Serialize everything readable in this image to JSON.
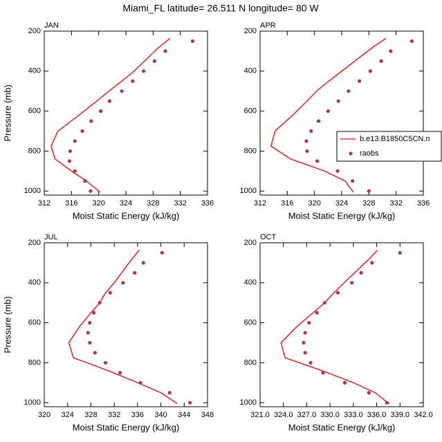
{
  "page_title": "Miami_FL  latitude= 26.511 N longitude= 80 W",
  "chart_data": [
    {
      "type": "line",
      "title": "JAN",
      "x_label": "Moist Static Energy (kJ/kg)",
      "y_label": "Pressure (mb)",
      "xlim": [
        312,
        336
      ],
      "xticks": [
        312,
        316,
        320,
        324,
        328,
        332,
        336
      ],
      "ylim": [
        1020,
        200
      ],
      "yticks": [
        200,
        400,
        600,
        800,
        1000
      ],
      "series": [
        {
          "color": "#ff0000",
          "x": [
            330.5,
            328.8,
            325.2,
            323.4,
            321.5,
            319.7,
            317.1,
            314.0,
            313.0,
            313.6,
            316.0,
            318.2,
            320.2
          ],
          "y": [
            236,
            282,
            400,
            450,
            500,
            550,
            620,
            700,
            775,
            840,
            900,
            950,
            1005
          ]
        },
        {
          "color": "#b03060",
          "marker": "dot",
          "x": [
            333.8,
            329.8,
            328.2,
            326.6,
            325.0,
            323.4,
            321.6,
            320.3,
            318.9,
            317.6,
            316.5,
            315.8,
            315.7,
            316.5,
            318.0,
            318.8
          ],
          "y": [
            250,
            300,
            350,
            400,
            450,
            500,
            550,
            600,
            650,
            700,
            750,
            800,
            850,
            900,
            950,
            1000
          ]
        }
      ]
    },
    {
      "type": "line",
      "title": "APR",
      "x_label": "Moist Static Energy (kJ/kg)",
      "xlim": [
        312,
        336
      ],
      "xticks": [
        312,
        316,
        320,
        324,
        328,
        332,
        336
      ],
      "ylim": [
        1020,
        200
      ],
      "yticks": [
        200,
        400,
        600,
        800,
        1000
      ],
      "legend": "right",
      "series": [
        {
          "name": "b.e13.B1850C5CN.n",
          "color": "#ff0000",
          "x": [
            330.5,
            328.5,
            324.0,
            322.1,
            320.3,
            318.9,
            316.8,
            314.2,
            313.6,
            316.5,
            321.5,
            324.5,
            325.7
          ],
          "y": [
            236,
            282,
            400,
            450,
            500,
            550,
            620,
            700,
            775,
            840,
            900,
            950,
            1005
          ]
        },
        {
          "name": "raobs",
          "color": "#b03060",
          "marker": "dot",
          "x": [
            334.3,
            331.2,
            329.8,
            328.2,
            326.6,
            325.0,
            323.5,
            322.0,
            320.6,
            319.5,
            318.8,
            318.9,
            320.4,
            323.4,
            325.6,
            328.0
          ],
          "y": [
            250,
            300,
            350,
            400,
            450,
            500,
            550,
            600,
            650,
            700,
            750,
            800,
            850,
            900,
            950,
            1000
          ]
        }
      ]
    },
    {
      "type": "line",
      "title": "JUL",
      "x_label": "Moist Static Energy (kJ/kg)",
      "y_label": "Pressure (mb)",
      "xlim": [
        320,
        348
      ],
      "xticks": [
        320,
        324,
        328,
        332,
        336,
        340,
        344,
        348
      ],
      "ylim": [
        1020,
        200
      ],
      "yticks": [
        200,
        400,
        600,
        800,
        1000
      ],
      "series": [
        {
          "color": "#ff0000",
          "x": [
            336.3,
            335.0,
            332.0,
            330.5,
            329.5,
            328.0,
            326.0,
            324.2,
            325.0,
            331.0,
            336.0,
            340.0,
            342.8
          ],
          "y": [
            236,
            282,
            400,
            450,
            500,
            550,
            620,
            700,
            775,
            840,
            900,
            950,
            1005
          ]
        },
        {
          "color": "#b03060",
          "marker": "dot",
          "x": [
            340.2,
            337.0,
            335.5,
            333.5,
            331.3,
            329.5,
            328.5,
            327.8,
            327.5,
            327.8,
            328.7,
            330.5,
            333.0,
            336.5,
            341.5,
            345.0
          ],
          "y": [
            250,
            300,
            350,
            400,
            450,
            500,
            550,
            600,
            650,
            700,
            750,
            800,
            850,
            900,
            950,
            1000
          ]
        }
      ]
    },
    {
      "type": "line",
      "title": "OCT",
      "x_label": "Moist Static Energy (kJ/kg)",
      "xlim": [
        321,
        342
      ],
      "xticks": [
        {
          "value": 321,
          "label": "321.0"
        },
        {
          "value": 324,
          "label": "324.0"
        },
        {
          "value": 327,
          "label": "327.0"
        },
        {
          "value": 330,
          "label": "330.0"
        },
        {
          "value": 333,
          "label": "333.0"
        },
        {
          "value": 336,
          "label": "336.0"
        },
        {
          "value": 339,
          "label": "339.0"
        },
        {
          "value": 342,
          "label": "342.0"
        }
      ],
      "ylim": [
        1020,
        200
      ],
      "yticks": [
        200,
        400,
        600,
        800,
        1000
      ],
      "series": [
        {
          "color": "#ff0000",
          "x": [
            336.1,
            335.0,
            331.8,
            330.5,
            329.3,
            327.8,
            325.7,
            323.7,
            324.2,
            329.0,
            333.0,
            335.8,
            337.6
          ],
          "y": [
            236,
            282,
            400,
            450,
            500,
            550,
            620,
            700,
            775,
            840,
            900,
            950,
            1005
          ]
        },
        {
          "color": "#b03060",
          "marker": "dot",
          "x": [
            339.0,
            335.4,
            334.0,
            332.8,
            331.0,
            329.3,
            328.3,
            327.3,
            326.8,
            326.6,
            326.8,
            327.5,
            329.1,
            331.9,
            335.0,
            337.3
          ],
          "y": [
            250,
            300,
            350,
            400,
            450,
            500,
            550,
            600,
            650,
            700,
            750,
            800,
            850,
            900,
            950,
            1000
          ]
        }
      ]
    }
  ]
}
